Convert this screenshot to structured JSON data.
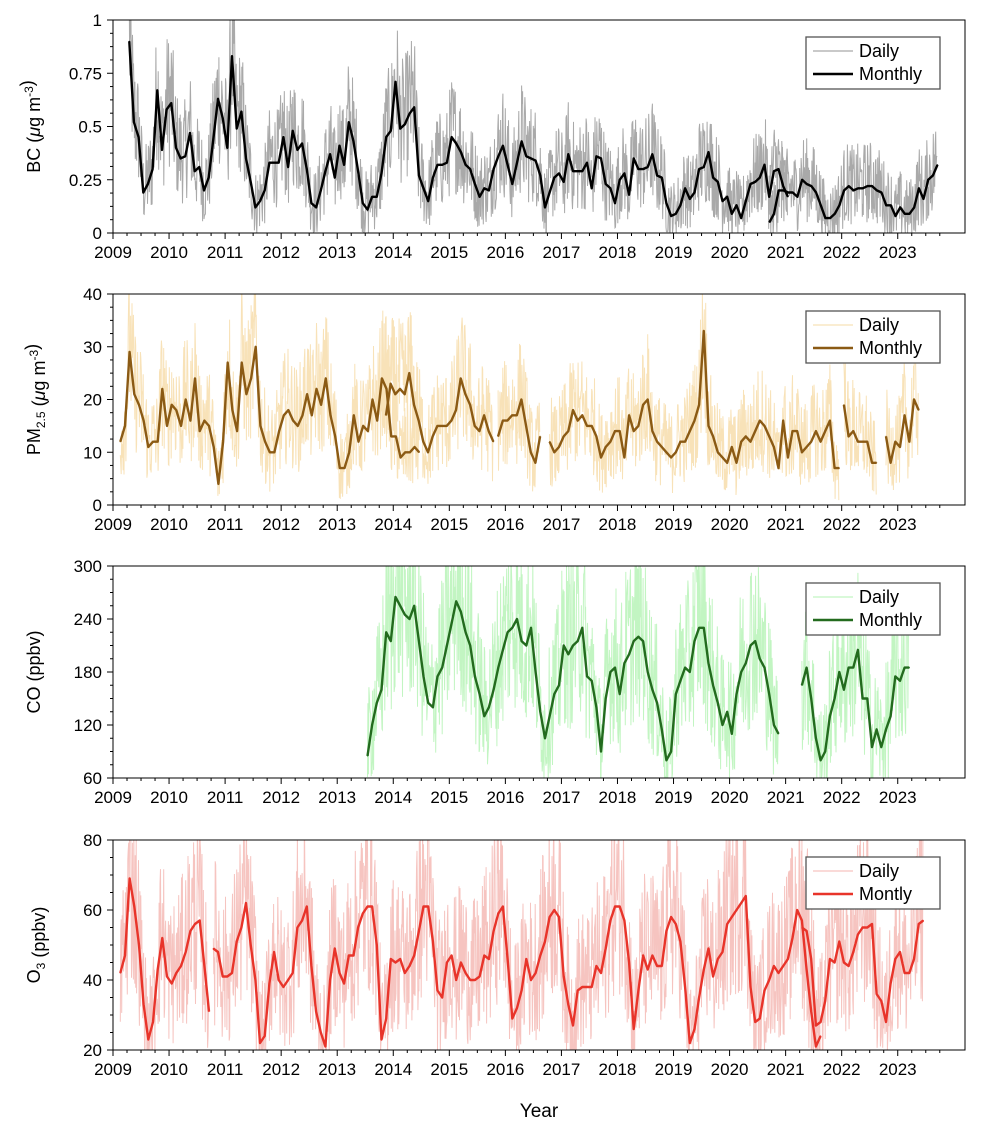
{
  "figure": {
    "xlabel": "Year"
  },
  "chart_data": [
    {
      "type": "line",
      "ylabel": "BC (μg m⁻³)",
      "xlim": [
        2009,
        2024.2
      ],
      "ylim": [
        0,
        1
      ],
      "yticks": [
        "0",
        "0.25",
        "0.5",
        "0.75",
        "1"
      ],
      "ytick_values": [
        0,
        0.25,
        0.5,
        0.75,
        1
      ],
      "xticks": [
        "2009",
        "2010",
        "2011",
        "2012",
        "2013",
        "2014",
        "2015",
        "2016",
        "2017",
        "2018",
        "2019",
        "2020",
        "2021",
        "2022",
        "2023"
      ],
      "legend": {
        "position": "top-right",
        "entries": [
          "Daily",
          "Monthly"
        ]
      },
      "colors": {
        "daily": "#a9a9a9",
        "monthly": "#000000"
      },
      "series": [
        {
          "name": "Daily",
          "kind": "daily",
          "note": "dense daily trace, range shown as band around monthly"
        },
        {
          "name": "Monthly",
          "kind": "monthly",
          "segments": [
            {
              "start": 2009.29,
              "values": [
                0.9,
                0.52,
                0.45,
                0.19,
                0.23,
                0.3,
                0.67,
                0.39,
                0.58,
                0.61,
                0.4,
                0.35,
                0.36,
                0.47,
                0.29,
                0.31,
                0.2,
                0.26,
                0.44,
                0.63,
                0.54,
                0.4,
                0.83,
                0.49,
                0.57,
                0.35,
                0.24,
                0.12,
                0.15,
                0.2,
                0.33,
                0.33,
                0.33,
                0.45,
                0.31,
                0.48,
                0.39,
                0.42,
                0.3,
                0.14,
                0.12,
                0.2,
                0.29,
                0.37,
                0.26,
                0.41,
                0.32,
                0.52,
                0.43,
                0.29,
                0.14,
                0.11,
                0.17,
                0.17,
                0.28,
                0.45,
                0.48,
                0.71,
                0.49,
                0.51,
                0.56,
                0.59,
                0.27,
                0.21,
                0.15,
                0.26,
                0.32,
                0.32,
                0.33,
                0.45,
                0.42,
                0.38,
                0.32,
                0.3,
                0.23,
                0.17,
                0.21,
                0.2,
                0.3,
                0.36,
                0.41,
                0.32,
                0.23,
                0.33,
                0.43,
                0.36,
                0.35,
                0.34,
                0.27,
                0.12,
                0.19,
                0.26,
                0.28,
                0.24,
                0.37,
                0.29,
                0.29,
                0.29,
                0.33,
                0.21,
                0.36,
                0.35,
                0.23,
                0.21,
                0.14,
                0.25,
                0.28,
                0.18,
                0.35,
                0.3,
                0.3,
                0.31,
                0.37,
                0.27,
                0.26,
                0.14,
                0.08,
                0.09,
                0.13,
                0.21,
                0.16,
                0.19,
                0.3,
                0.31,
                0.38,
                0.26,
                0.24,
                0.15,
                0.17,
                0.09,
                0.13,
                0.07,
                0.15,
                0.23,
                0.24,
                0.26,
                0.32,
                0.17,
                0.29,
                0.3,
                0.22,
                0.17
              ]
            },
            {
              "start": 2020.71,
              "values": [
                0.05,
                0.09,
                0.2,
                0.2,
                0.19,
                0.19,
                0.17,
                0.25,
                0.23,
                0.22,
                0.19,
                0.13,
                0.07,
                0.07,
                0.09,
                0.13,
                0.2,
                0.22,
                0.2,
                0.21,
                0.21,
                0.22,
                0.22,
                0.2,
                0.19,
                0.13,
                0.13,
                0.08,
                0.12,
                0.09,
                0.09,
                0.12,
                0.21,
                0.16,
                0.25,
                0.27,
                0.32
              ]
            }
          ]
        }
      ]
    },
    {
      "type": "line",
      "ylabel": "PM2.5 (μg m⁻³)",
      "xlim": [
        2009,
        2024.2
      ],
      "ylim": [
        0,
        40
      ],
      "yticks": [
        "0",
        "10",
        "20",
        "30",
        "40"
      ],
      "ytick_values": [
        0,
        10,
        20,
        30,
        40
      ],
      "xticks": [
        "2009",
        "2010",
        "2011",
        "2012",
        "2013",
        "2014",
        "2015",
        "2016",
        "2017",
        "2018",
        "2019",
        "2020",
        "2021",
        "2022",
        "2023"
      ],
      "legend": {
        "position": "top-right",
        "entries": [
          "Daily",
          "Monthly"
        ]
      },
      "colors": {
        "daily": "#f8e2b8",
        "monthly": "#8b5a14"
      },
      "series": [
        {
          "name": "Daily",
          "kind": "daily"
        },
        {
          "name": "Monthly",
          "kind": "monthly",
          "segments": [
            {
              "start": 2009.13,
              "values": [
                12,
                15,
                29,
                21,
                19,
                16,
                11,
                12,
                12,
                22,
                15,
                19,
                18,
                15,
                20,
                16,
                24,
                14,
                16,
                15,
                11,
                4,
                12,
                27,
                18,
                14,
                27,
                21,
                24,
                30,
                15,
                12,
                10,
                10,
                14,
                17,
                18,
                16,
                15,
                17,
                21,
                17,
                22,
                19,
                24,
                17,
                13,
                7,
                7,
                10,
                17,
                12,
                15,
                14,
                20,
                16,
                24,
                22,
                13,
                13,
                9,
                10,
                10,
                11,
                10
              ]
            },
            {
              "start": 2013.87,
              "values": [
                17,
                23,
                21,
                22,
                21,
                25,
                19,
                16,
                12,
                10,
                13,
                15,
                15,
                15,
                16,
                18,
                24,
                21,
                19,
                15,
                14,
                17,
                14,
                12
              ]
            },
            {
              "start": 2015.87,
              "values": [
                13,
                16,
                16,
                17,
                17,
                20,
                15,
                10,
                8,
                13
              ]
            },
            {
              "start": 2016.79,
              "values": [
                12,
                10,
                11,
                13,
                14,
                18,
                16,
                17,
                15,
                15,
                13,
                9,
                11,
                12,
                14,
                14,
                9,
                17,
                14,
                15,
                19,
                20,
                14,
                12,
                11,
                10,
                9,
                10,
                12,
                12,
                14,
                16,
                19,
                33,
                15,
                13,
                10,
                9,
                8,
                11,
                8,
                12,
                13,
                12,
                14,
                16,
                15,
                13,
                11,
                7,
                16,
                9,
                14,
                14,
                10,
                11,
                12,
                14,
                12,
                14,
                16,
                7,
                7
              ]
            },
            {
              "start": 2022.04,
              "values": [
                19,
                13,
                14,
                12,
                12,
                12,
                8,
                8
              ]
            },
            {
              "start": 2022.79,
              "values": [
                13,
                8,
                12,
                11,
                17,
                12,
                20,
                18
              ]
            }
          ]
        }
      ]
    },
    {
      "type": "line",
      "ylabel": "CO (ppbv)",
      "xlim": [
        2009,
        2024.2
      ],
      "ylim": [
        60,
        300
      ],
      "yticks": [
        "60",
        "120",
        "180",
        "240",
        "300"
      ],
      "ytick_values": [
        60,
        120,
        180,
        240,
        300
      ],
      "xticks": [
        "2009",
        "2010",
        "2011",
        "2012",
        "2013",
        "2014",
        "2015",
        "2016",
        "2017",
        "2018",
        "2019",
        "2020",
        "2021",
        "2022",
        "2023"
      ],
      "legend": {
        "position": "top-right",
        "entries": [
          "Daily",
          "Monthly"
        ]
      },
      "colors": {
        "daily": "#c2f5c2",
        "monthly": "#236b1e"
      },
      "series": [
        {
          "name": "Daily",
          "kind": "daily"
        },
        {
          "name": "Monthly",
          "kind": "monthly",
          "segments": [
            {
              "start": 2013.54,
              "values": [
                85,
                120,
                145,
                160,
                225,
                215,
                265,
                255,
                245,
                240,
                255,
                215,
                175,
                145,
                140,
                175,
                185,
                210,
                235,
                260,
                248,
                225,
                210,
                175,
                155,
                130,
                140,
                160,
                185,
                205,
                225,
                230,
                240,
                215,
                210,
                230,
                180,
                135,
                105,
                130,
                155,
                165,
                210,
                200,
                210,
                215,
                230,
                175,
                170,
                140,
                90,
                150,
                180,
                185,
                155,
                190,
                200,
                215,
                220,
                215,
                180,
                160,
                145,
                115,
                80,
                90,
                155,
                170,
                185,
                180,
                215,
                230,
                230,
                190,
                165,
                145,
                120,
                135,
                110,
                155,
                180,
                190,
                210,
                215,
                195,
                185,
                155,
                120,
                110
              ]
            },
            {
              "start": 2021.29,
              "values": [
                165,
                185,
                150,
                105,
                80,
                90,
                130,
                150,
                180,
                160,
                185,
                185,
                205,
                150,
                150,
                95,
                115,
                95,
                115,
                130,
                175,
                170,
                185,
                185
              ]
            }
          ]
        }
      ]
    },
    {
      "type": "line",
      "ylabel": "O3 (ppbv)",
      "xlim": [
        2009,
        2024.2
      ],
      "ylim": [
        20,
        80
      ],
      "yticks": [
        "20",
        "40",
        "60",
        "80"
      ],
      "ytick_values": [
        20,
        40,
        60,
        80
      ],
      "xticks": [
        "2009",
        "2010",
        "2011",
        "2012",
        "2013",
        "2014",
        "2015",
        "2016",
        "2017",
        "2018",
        "2019",
        "2020",
        "2021",
        "2022",
        "2023"
      ],
      "legend": {
        "position": "top-right",
        "entries": [
          "Daily",
          "Montly"
        ]
      },
      "colors": {
        "daily": "#f6c4c0",
        "monthly": "#e8342a"
      },
      "series": [
        {
          "name": "Daily",
          "kind": "daily"
        },
        {
          "name": "Montly",
          "kind": "monthly",
          "segments": [
            {
              "start": 2009.13,
              "values": [
                42,
                47,
                69,
                61,
                50,
                33,
                23,
                28,
                43,
                52,
                41,
                39,
                42,
                44,
                48,
                54,
                56,
                57,
                44,
                31
              ]
            },
            {
              "start": 2010.79,
              "values": [
                49,
                48,
                41,
                41,
                42,
                51,
                55,
                62,
                50,
                40,
                22,
                24,
                39,
                48,
                40,
                38,
                40,
                42,
                55,
                57,
                61,
                44,
                31,
                25,
                21,
                40,
                49,
                42,
                39,
                47,
                47,
                55,
                59,
                61,
                61,
                50,
                23,
                29,
                46,
                45,
                46,
                42,
                44,
                47,
                54,
                61,
                61,
                51,
                37,
                35,
                45,
                47,
                40,
                45,
                42,
                40,
                40,
                41,
                47,
                46,
                54,
                59,
                61,
                46,
                29,
                32,
                37,
                46,
                40,
                42,
                47,
                51,
                58,
                60,
                58,
                41,
                33,
                27,
                37,
                38,
                38,
                38,
                44,
                42,
                49,
                57,
                61,
                61,
                57,
                45,
                26,
                37,
                47,
                43,
                47,
                44,
                44,
                54,
                58,
                56,
                51,
                38,
                22,
                26,
                35,
                43,
                49,
                41,
                46,
                48,
                56,
                58,
                60,
                62,
                64,
                38,
                28,
                29,
                37,
                40,
                44,
                42,
                44,
                46,
                52,
                60,
                57,
                43,
                31,
                21,
                24
              ]
            },
            {
              "start": 2021.29,
              "values": [
                55,
                54,
                46,
                27,
                28,
                34,
                46,
                45,
                51,
                45,
                44,
                48,
                53,
                55,
                55,
                56,
                36,
                34,
                28,
                39,
                46,
                48,
                42,
                42,
                46,
                56,
                57
              ]
            }
          ]
        }
      ]
    }
  ]
}
